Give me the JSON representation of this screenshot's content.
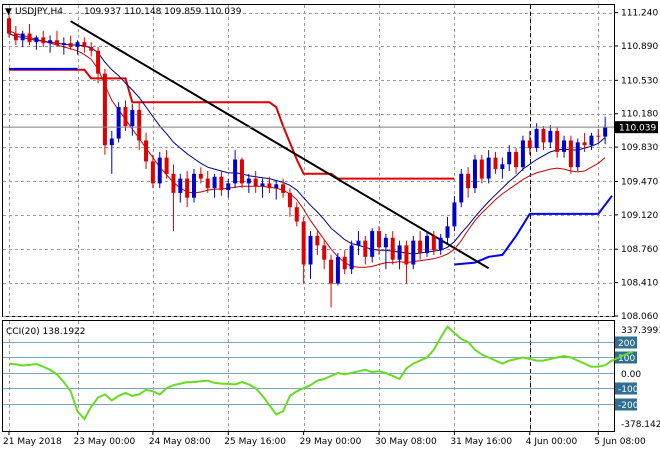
{
  "header": {
    "symbol_tf": "USDJPY,H4",
    "ohlc": "109.937 110.148 109.859 110.039"
  },
  "indicator": {
    "label": "CCI(20) 138.1922"
  },
  "colors": {
    "bull": "#0000cc",
    "bear": "#e00000",
    "ma_fast": "#000080",
    "ma_slow": "#cc0000",
    "cci": "#66dd22",
    "envelope_up": "#dd0000",
    "envelope_down": "#0000ff",
    "trendline": "#000000",
    "grid": "#9a9a9a",
    "cci_level": "#7fa3b8"
  },
  "chart_data": [
    {
      "type": "candlestick",
      "title": "USDJPY,H4",
      "ylim": [
        108.06,
        111.33
      ],
      "price_ticks": [
        "111.240",
        "110.890",
        "110.530",
        "110.180",
        "109.830",
        "109.470",
        "109.120",
        "108.760",
        "108.410",
        "108.060"
      ],
      "x_ticks": [
        "21 May 2018",
        "23 May 00:00",
        "24 May 08:00",
        "25 May 16:00",
        "29 May 00:00",
        "30 May 08:00",
        "31 May 16:00",
        "4 Jun 00:00",
        "5 Jun 08:00"
      ],
      "current_price": "110.039",
      "candles": [
        {
          "o": 111.18,
          "h": 111.28,
          "l": 110.98,
          "c": 111.02
        },
        {
          "o": 111.02,
          "h": 111.1,
          "l": 110.9,
          "c": 110.95
        },
        {
          "o": 110.95,
          "h": 111.05,
          "l": 110.88,
          "c": 111.02
        },
        {
          "o": 111.02,
          "h": 111.12,
          "l": 110.9,
          "c": 110.93
        },
        {
          "o": 110.93,
          "h": 111.0,
          "l": 110.85,
          "c": 110.98
        },
        {
          "o": 110.98,
          "h": 111.05,
          "l": 110.88,
          "c": 110.92
        },
        {
          "o": 110.92,
          "h": 111.0,
          "l": 110.82,
          "c": 110.95
        },
        {
          "o": 110.95,
          "h": 111.05,
          "l": 110.88,
          "c": 110.9
        },
        {
          "o": 110.9,
          "h": 110.98,
          "l": 110.8,
          "c": 110.92
        },
        {
          "o": 110.92,
          "h": 111.0,
          "l": 110.85,
          "c": 110.88
        },
        {
          "o": 110.88,
          "h": 110.95,
          "l": 110.8,
          "c": 110.93
        },
        {
          "o": 110.93,
          "h": 110.98,
          "l": 110.82,
          "c": 110.88
        },
        {
          "o": 110.88,
          "h": 110.93,
          "l": 110.78,
          "c": 110.84
        },
        {
          "o": 110.84,
          "h": 110.88,
          "l": 110.5,
          "c": 110.6
        },
        {
          "o": 110.6,
          "h": 110.65,
          "l": 109.75,
          "c": 109.85
        },
        {
          "o": 109.85,
          "h": 110.0,
          "l": 109.55,
          "c": 109.92
        },
        {
          "o": 109.92,
          "h": 110.3,
          "l": 109.88,
          "c": 110.25
        },
        {
          "o": 110.25,
          "h": 110.32,
          "l": 110.0,
          "c": 110.05
        },
        {
          "o": 110.05,
          "h": 110.28,
          "l": 109.95,
          "c": 110.22
        },
        {
          "o": 110.22,
          "h": 110.3,
          "l": 109.8,
          "c": 109.9
        },
        {
          "o": 109.9,
          "h": 109.98,
          "l": 109.6,
          "c": 109.68
        },
        {
          "o": 109.68,
          "h": 109.75,
          "l": 109.4,
          "c": 109.45
        },
        {
          "o": 109.45,
          "h": 109.78,
          "l": 109.4,
          "c": 109.72
        },
        {
          "o": 109.72,
          "h": 109.8,
          "l": 109.5,
          "c": 109.55
        },
        {
          "o": 109.55,
          "h": 109.65,
          "l": 108.95,
          "c": 109.35
        },
        {
          "o": 109.35,
          "h": 109.55,
          "l": 109.25,
          "c": 109.5
        },
        {
          "o": 109.5,
          "h": 109.58,
          "l": 109.2,
          "c": 109.3
        },
        {
          "o": 109.3,
          "h": 109.6,
          "l": 109.25,
          "c": 109.55
        },
        {
          "o": 109.55,
          "h": 109.62,
          "l": 109.45,
          "c": 109.5
        },
        {
          "o": 109.5,
          "h": 109.58,
          "l": 109.35,
          "c": 109.4
        },
        {
          "o": 109.4,
          "h": 109.55,
          "l": 109.3,
          "c": 109.52
        },
        {
          "o": 109.52,
          "h": 109.58,
          "l": 109.32,
          "c": 109.38
        },
        {
          "o": 109.38,
          "h": 109.5,
          "l": 109.3,
          "c": 109.45
        },
        {
          "o": 109.45,
          "h": 109.8,
          "l": 109.4,
          "c": 109.7
        },
        {
          "o": 109.7,
          "h": 109.72,
          "l": 109.4,
          "c": 109.45
        },
        {
          "o": 109.45,
          "h": 109.55,
          "l": 109.35,
          "c": 109.5
        },
        {
          "o": 109.5,
          "h": 109.58,
          "l": 109.35,
          "c": 109.42
        },
        {
          "o": 109.42,
          "h": 109.5,
          "l": 109.3,
          "c": 109.45
        },
        {
          "o": 109.45,
          "h": 109.52,
          "l": 109.35,
          "c": 109.4
        },
        {
          "o": 109.4,
          "h": 109.48,
          "l": 109.28,
          "c": 109.44
        },
        {
          "o": 109.44,
          "h": 109.5,
          "l": 109.3,
          "c": 109.35
        },
        {
          "o": 109.35,
          "h": 109.4,
          "l": 109.1,
          "c": 109.2
        },
        {
          "o": 109.2,
          "h": 109.25,
          "l": 109.0,
          "c": 109.05
        },
        {
          "o": 109.05,
          "h": 109.1,
          "l": 108.4,
          "c": 108.6
        },
        {
          "o": 108.6,
          "h": 108.95,
          "l": 108.45,
          "c": 108.9
        },
        {
          "o": 108.9,
          "h": 108.95,
          "l": 108.7,
          "c": 108.8
        },
        {
          "o": 108.8,
          "h": 108.85,
          "l": 108.55,
          "c": 108.65
        },
        {
          "o": 108.65,
          "h": 108.7,
          "l": 108.15,
          "c": 108.4
        },
        {
          "o": 108.4,
          "h": 108.72,
          "l": 108.38,
          "c": 108.68
        },
        {
          "o": 108.68,
          "h": 108.75,
          "l": 108.5,
          "c": 108.55
        },
        {
          "o": 108.55,
          "h": 108.85,
          "l": 108.5,
          "c": 108.8
        },
        {
          "o": 108.8,
          "h": 108.95,
          "l": 108.7,
          "c": 108.85
        },
        {
          "o": 108.85,
          "h": 108.9,
          "l": 108.6,
          "c": 108.68
        },
        {
          "o": 108.68,
          "h": 108.98,
          "l": 108.62,
          "c": 108.95
        },
        {
          "o": 108.95,
          "h": 109.0,
          "l": 108.7,
          "c": 108.78
        },
        {
          "o": 108.78,
          "h": 108.92,
          "l": 108.55,
          "c": 108.88
        },
        {
          "o": 108.88,
          "h": 108.95,
          "l": 108.6,
          "c": 108.65
        },
        {
          "o": 108.65,
          "h": 108.85,
          "l": 108.55,
          "c": 108.8
        },
        {
          "o": 108.8,
          "h": 108.85,
          "l": 108.4,
          "c": 108.6
        },
        {
          "o": 108.6,
          "h": 108.9,
          "l": 108.55,
          "c": 108.85
        },
        {
          "o": 108.85,
          "h": 108.95,
          "l": 108.65,
          "c": 108.72
        },
        {
          "o": 108.72,
          "h": 108.95,
          "l": 108.68,
          "c": 108.9
        },
        {
          "o": 108.9,
          "h": 108.95,
          "l": 108.7,
          "c": 108.75
        },
        {
          "o": 108.75,
          "h": 108.92,
          "l": 108.7,
          "c": 108.88
        },
        {
          "o": 108.88,
          "h": 109.1,
          "l": 108.82,
          "c": 109.0
        },
        {
          "o": 109.0,
          "h": 109.32,
          "l": 108.95,
          "c": 109.25
        },
        {
          "o": 109.25,
          "h": 109.6,
          "l": 109.2,
          "c": 109.55
        },
        {
          "o": 109.55,
          "h": 109.62,
          "l": 109.3,
          "c": 109.4
        },
        {
          "o": 109.4,
          "h": 109.75,
          "l": 109.35,
          "c": 109.7
        },
        {
          "o": 109.7,
          "h": 109.75,
          "l": 109.45,
          "c": 109.5
        },
        {
          "o": 109.5,
          "h": 109.8,
          "l": 109.45,
          "c": 109.72
        },
        {
          "o": 109.72,
          "h": 109.78,
          "l": 109.55,
          "c": 109.6
        },
        {
          "o": 109.6,
          "h": 109.72,
          "l": 109.5,
          "c": 109.65
        },
        {
          "o": 109.65,
          "h": 109.85,
          "l": 109.58,
          "c": 109.78
        },
        {
          "o": 109.78,
          "h": 109.82,
          "l": 109.55,
          "c": 109.62
        },
        {
          "o": 109.62,
          "h": 109.95,
          "l": 109.58,
          "c": 109.9
        },
        {
          "o": 109.9,
          "h": 110.0,
          "l": 109.75,
          "c": 109.82
        },
        {
          "o": 109.82,
          "h": 110.08,
          "l": 109.78,
          "c": 110.02
        },
        {
          "o": 110.02,
          "h": 110.05,
          "l": 109.8,
          "c": 109.88
        },
        {
          "o": 109.88,
          "h": 110.06,
          "l": 109.82,
          "c": 110.0
        },
        {
          "o": 110.0,
          "h": 110.04,
          "l": 109.72,
          "c": 109.78
        },
        {
          "o": 109.78,
          "h": 109.95,
          "l": 109.72,
          "c": 109.9
        },
        {
          "o": 109.9,
          "h": 109.95,
          "l": 109.55,
          "c": 109.62
        },
        {
          "o": 109.62,
          "h": 109.92,
          "l": 109.58,
          "c": 109.88
        },
        {
          "o": 109.88,
          "h": 109.98,
          "l": 109.78,
          "c": 109.85
        },
        {
          "o": 109.85,
          "h": 109.98,
          "l": 109.8,
          "c": 109.95
        },
        {
          "o": 109.95,
          "h": 110.02,
          "l": 109.88,
          "c": 109.94
        },
        {
          "o": 109.94,
          "h": 110.15,
          "l": 109.86,
          "c": 110.04
        }
      ],
      "ma_fast": [
        111.02,
        110.99,
        110.98,
        110.96,
        110.95,
        110.94,
        110.93,
        110.92,
        110.91,
        110.9,
        110.9,
        110.89,
        110.87,
        110.82,
        110.72,
        110.64,
        110.58,
        110.5,
        110.43,
        110.35,
        110.25,
        110.15,
        110.05,
        109.97,
        109.88,
        109.82,
        109.76,
        109.71,
        109.66,
        109.62,
        109.6,
        109.58,
        109.56,
        109.56,
        109.55,
        109.53,
        109.52,
        109.51,
        109.5,
        109.48,
        109.46,
        109.43,
        109.38,
        109.3,
        109.22,
        109.15,
        109.07,
        108.98,
        108.92,
        108.86,
        108.82,
        108.8,
        108.78,
        108.76,
        108.75,
        108.75,
        108.74,
        108.73,
        108.72,
        108.71,
        108.72,
        108.73,
        108.74,
        108.75,
        108.78,
        108.84,
        108.93,
        109.01,
        109.1,
        109.18,
        109.26,
        109.33,
        109.4,
        109.47,
        109.53,
        109.6,
        109.65,
        109.7,
        109.74,
        109.78,
        109.8,
        109.81,
        109.8,
        109.8,
        109.82,
        109.84,
        109.87,
        109.93
      ],
      "ma_slow": [
        111.05,
        111.02,
        111.0,
        110.98,
        110.96,
        110.94,
        110.92,
        110.9,
        110.88,
        110.86,
        110.84,
        110.8,
        110.75,
        110.65,
        110.48,
        110.32,
        110.22,
        110.12,
        110.02,
        109.92,
        109.82,
        109.72,
        109.62,
        109.54,
        109.46,
        109.4,
        109.36,
        109.35,
        109.36,
        109.38,
        109.39,
        109.39,
        109.4,
        109.41,
        109.42,
        109.42,
        109.42,
        109.42,
        109.41,
        109.4,
        109.38,
        109.34,
        109.28,
        109.18,
        109.06,
        108.96,
        108.86,
        108.76,
        108.68,
        108.62,
        108.58,
        108.57,
        108.57,
        108.58,
        108.6,
        108.62,
        108.62,
        108.63,
        108.62,
        108.63,
        108.64,
        108.65,
        108.66,
        108.68,
        108.71,
        108.76,
        108.85,
        108.96,
        109.06,
        109.14,
        109.21,
        109.28,
        109.34,
        109.39,
        109.44,
        109.49,
        109.53,
        109.56,
        109.58,
        109.6,
        109.61,
        109.6,
        109.58,
        109.57,
        109.58,
        109.62,
        109.66,
        109.72
      ],
      "envelope_upper": {
        "segments": [
          [
            [
              0,
              110.64
            ],
            [
              11,
              110.64
            ],
            [
              12,
              110.55
            ],
            [
              17,
              110.55
            ],
            [
              18,
              110.3
            ],
            [
              30,
              110.3
            ],
            [
              31,
              110.3
            ],
            [
              38,
              110.3
            ],
            [
              39,
              110.25
            ],
            [
              40,
              110.05
            ],
            [
              42,
              109.7
            ],
            [
              43,
              109.55
            ],
            [
              47,
              109.55
            ],
            [
              48,
              109.5
            ],
            [
              65,
              109.5
            ]
          ]
        ]
      },
      "envelope_lower": {
        "segments": [
          [
            [
              0,
              110.65
            ],
            [
              10,
              110.65
            ]
          ],
          [
            [
              65,
              108.6
            ],
            [
              68,
              108.62
            ],
            [
              70,
              108.68
            ],
            [
              72,
              108.7
            ],
            [
              74,
              108.9
            ],
            [
              76,
              109.13
            ],
            [
              86,
              109.13
            ],
            [
              88,
              109.32
            ]
          ]
        ]
      },
      "trendline": [
        [
          9,
          111.15
        ],
        [
          70,
          108.56
        ]
      ]
    },
    {
      "type": "line",
      "title": "CCI(20) 138.1922",
      "ylim": [
        -378.142,
        337.3991
      ],
      "levels": [
        200,
        100,
        0,
        -100,
        -200
      ],
      "level_labels": [
        "200",
        "100",
        "0.00",
        "-100",
        "-200"
      ],
      "axis_labels": [
        "337.3991",
        "0.00",
        "-378.142"
      ],
      "values": [
        60,
        55,
        48,
        52,
        58,
        40,
        20,
        -10,
        -60,
        -120,
        -250,
        -300,
        -220,
        -160,
        -140,
        -180,
        -150,
        -130,
        -150,
        -140,
        -110,
        -120,
        -140,
        -100,
        -80,
        -70,
        -60,
        -60,
        -55,
        -50,
        -65,
        -70,
        -72,
        -75,
        -60,
        -75,
        -100,
        -150,
        -210,
        -270,
        -250,
        -150,
        -120,
        -100,
        -80,
        -50,
        -40,
        -20,
        0,
        -10,
        0,
        10,
        20,
        5,
        10,
        0,
        -20,
        -40,
        30,
        60,
        80,
        100,
        150,
        230,
        300,
        260,
        220,
        200,
        150,
        120,
        100,
        80,
        60,
        80,
        90,
        100,
        90,
        80,
        80,
        90,
        100,
        110,
        100,
        80,
        60,
        40,
        40,
        50,
        80,
        100,
        120,
        138
      ]
    }
  ]
}
